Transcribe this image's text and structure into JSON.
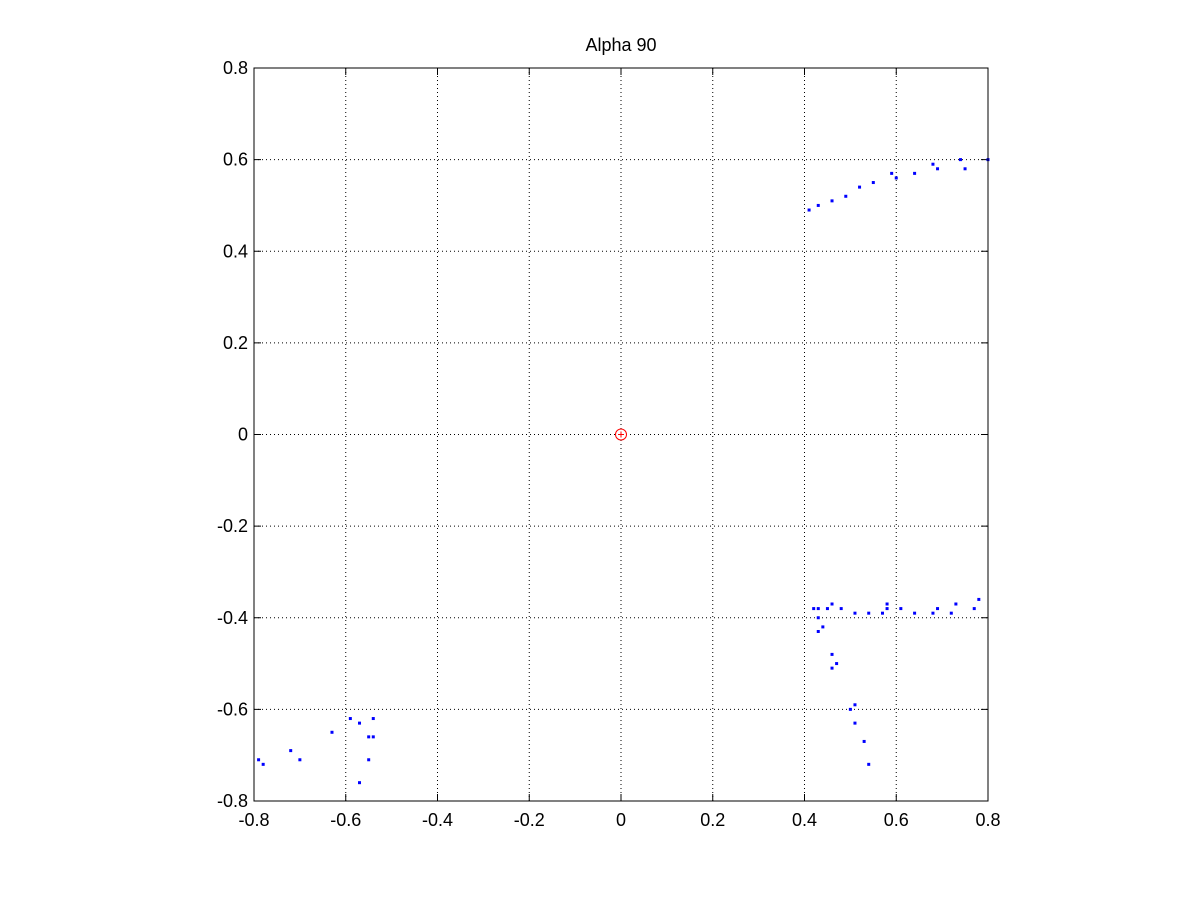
{
  "chart_data": {
    "type": "scatter",
    "title": "Alpha 90",
    "xlabel": "",
    "ylabel": "",
    "xlim": [
      -0.8,
      0.8
    ],
    "ylim": [
      -0.8,
      0.8
    ],
    "x_ticks": [
      -0.8,
      -0.6,
      -0.4,
      -0.2,
      0,
      0.2,
      0.4,
      0.6,
      0.8
    ],
    "y_ticks": [
      -0.8,
      -0.6,
      -0.4,
      -0.2,
      0,
      0.2,
      0.4,
      0.6,
      0.8
    ],
    "x_tick_labels": [
      "-0.8",
      "-0.6",
      "-0.4",
      "-0.2",
      "0",
      "0.2",
      "0.4",
      "0.6",
      "0.8"
    ],
    "y_tick_labels": [
      "-0.8",
      "-0.6",
      "-0.4",
      "-0.2",
      "0",
      "0.2",
      "0.4",
      "0.6",
      "0.8"
    ],
    "grid": true,
    "series": [
      {
        "marker": "point",
        "color": "#0000ff",
        "points": [
          [
            0.41,
            0.49
          ],
          [
            0.43,
            0.5
          ],
          [
            0.46,
            0.51
          ],
          [
            0.49,
            0.52
          ],
          [
            0.52,
            0.54
          ],
          [
            0.55,
            0.55
          ],
          [
            0.59,
            0.57
          ],
          [
            0.6,
            0.56
          ],
          [
            0.64,
            0.57
          ],
          [
            0.68,
            0.59
          ],
          [
            0.69,
            0.58
          ],
          [
            0.74,
            0.6
          ],
          [
            0.75,
            0.58
          ],
          [
            0.8,
            0.6
          ],
          [
            0.42,
            -0.38
          ],
          [
            0.43,
            -0.38
          ],
          [
            0.45,
            -0.38
          ],
          [
            0.46,
            -0.37
          ],
          [
            0.48,
            -0.38
          ],
          [
            0.51,
            -0.39
          ],
          [
            0.54,
            -0.39
          ],
          [
            0.57,
            -0.39
          ],
          [
            0.58,
            -0.38
          ],
          [
            0.58,
            -0.37
          ],
          [
            0.61,
            -0.38
          ],
          [
            0.64,
            -0.39
          ],
          [
            0.68,
            -0.39
          ],
          [
            0.69,
            -0.38
          ],
          [
            0.72,
            -0.39
          ],
          [
            0.73,
            -0.37
          ],
          [
            0.77,
            -0.38
          ],
          [
            0.78,
            -0.36
          ],
          [
            0.43,
            -0.4
          ],
          [
            0.43,
            -0.43
          ],
          [
            0.44,
            -0.42
          ],
          [
            0.46,
            -0.48
          ],
          [
            0.46,
            -0.51
          ],
          [
            0.47,
            -0.5
          ],
          [
            0.5,
            -0.6
          ],
          [
            0.51,
            -0.59
          ],
          [
            0.51,
            -0.63
          ],
          [
            0.53,
            -0.67
          ],
          [
            0.54,
            -0.72
          ],
          [
            -0.79,
            -0.71
          ],
          [
            -0.78,
            -0.72
          ],
          [
            -0.72,
            -0.69
          ],
          [
            -0.7,
            -0.71
          ],
          [
            -0.63,
            -0.65
          ],
          [
            -0.59,
            -0.62
          ],
          [
            -0.57,
            -0.63
          ],
          [
            -0.55,
            -0.66
          ],
          [
            -0.54,
            -0.66
          ],
          [
            -0.54,
            -0.62
          ],
          [
            -0.55,
            -0.71
          ],
          [
            -0.57,
            -0.76
          ]
        ]
      },
      {
        "marker": "circle",
        "color": "#ff0000",
        "points": [
          [
            0,
            0
          ]
        ]
      }
    ]
  }
}
